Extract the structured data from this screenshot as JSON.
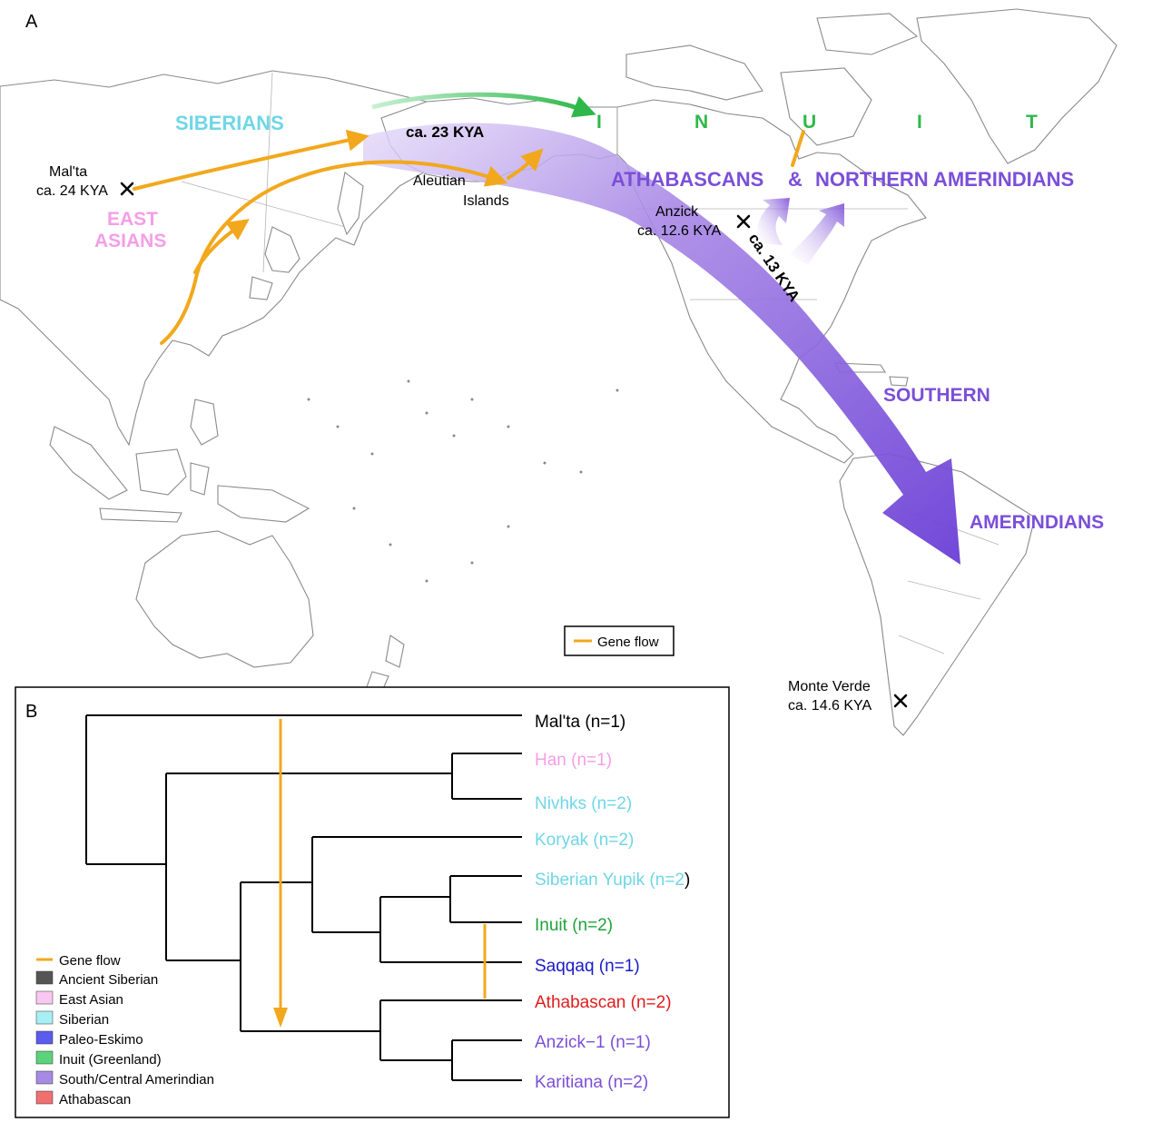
{
  "panel_a": {
    "letter": "A",
    "populations": {
      "siberians": "SIBERIANS",
      "east_asians_1": "EAST",
      "east_asians_2": "ASIANS",
      "inuit_letters": [
        "I",
        "N",
        "U",
        "I",
        "T"
      ],
      "athabascans": "ATHABASCANS",
      "ampersand": "&",
      "northern": "NORTHERN AMERINDIANS",
      "southern": "SOUTHERN",
      "amerindians": "AMERINDIANS"
    },
    "sites": {
      "malta_name": "Mal'ta",
      "malta_date": "ca. 24 KYA",
      "aleutian_1": "Aleutian",
      "aleutian_2": "Islands",
      "anzick_name": "Anzick",
      "anzick_date": "ca. 12.6 KYA",
      "monte_name": "Monte Verde",
      "monte_date": "ca. 14.6 KYA"
    },
    "dates": {
      "beringia": "ca. 23 KYA",
      "split": "ca. 13 KYA"
    },
    "legend": {
      "gene_flow": "Gene flow"
    },
    "colors": {
      "gene_flow": "#f2a81d",
      "amerindian": "#7b4fd8",
      "inuit": "#2eb84a",
      "siberian": "#6fd6e6",
      "east_asian": "#f59ee6"
    }
  },
  "panel_b": {
    "letter": "B",
    "leaves": [
      {
        "label": "Mal'ta (n=1)",
        "color": "#000000"
      },
      {
        "label": "Han (n=1)",
        "color": "#f59ee6"
      },
      {
        "label": "Nivhks (n=2)",
        "color": "#6fd6e6"
      },
      {
        "label": "Koryak (n=2)",
        "color": "#6fd6e6"
      },
      {
        "label": "Siberian Yupik (n=2",
        "color": "#6fd6e6",
        "suffix": ")"
      },
      {
        "label": "Inuit (n=2)",
        "color": "#1fa33a"
      },
      {
        "label": "Saqqaq (n=1)",
        "color": "#1a1ac8"
      },
      {
        "label": "Athabascan (n=2)",
        "color": "#e01c1c"
      },
      {
        "label": "Anzick−1 (n=1)",
        "color": "#7b4fd8"
      },
      {
        "label": "Karitiana (n=2)",
        "color": "#7b4fd8"
      }
    ],
    "legend": [
      {
        "label": "Gene flow",
        "type": "line",
        "color": "#f2a81d"
      },
      {
        "label": "Ancient Siberian",
        "type": "box",
        "color": "#555555"
      },
      {
        "label": "East Asian",
        "type": "box",
        "color": "#f9c8f2"
      },
      {
        "label": "Siberian",
        "type": "box",
        "color": "#a8eff5"
      },
      {
        "label": "Paleo-Eskimo",
        "type": "box",
        "color": "#5b5bef"
      },
      {
        "label": "Inuit (Greenland)",
        "type": "box",
        "color": "#5cd27a"
      },
      {
        "label": "South/Central Amerindian",
        "type": "box",
        "color": "#a58be4"
      },
      {
        "label": "Athabascan",
        "type": "box",
        "color": "#f07070"
      }
    ]
  }
}
